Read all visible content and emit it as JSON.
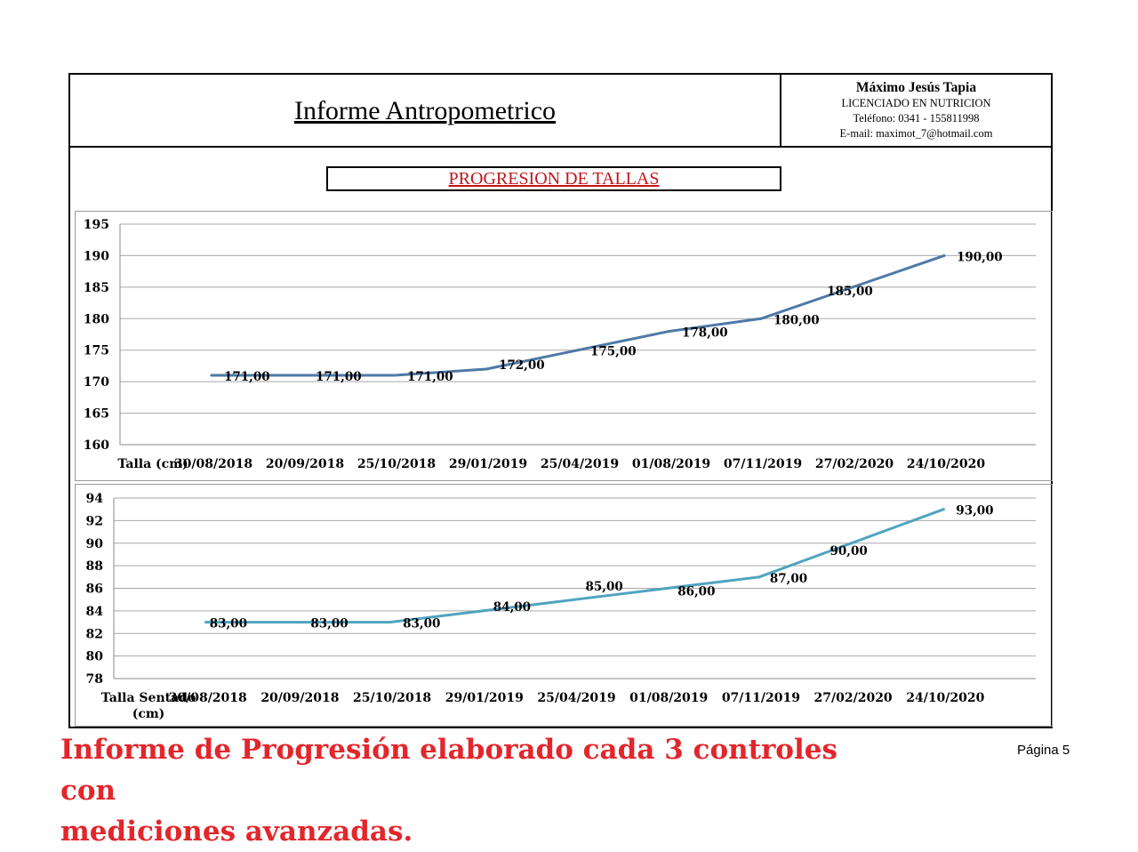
{
  "header": {
    "title": "Informe Antropometrico",
    "contact": {
      "name": "Máximo Jesús Tapia",
      "profession": "LICENCIADO EN NUTRICION",
      "phone": "Teléfono: 0341 - 155811998",
      "email": "E-mail: maximot_7@hotmail.com"
    }
  },
  "section_title": "PROGRESION DE TALLAS",
  "chart_data": [
    {
      "type": "line",
      "categories": [
        "30/08/2018",
        "20/09/2018",
        "25/10/2018",
        "29/01/2019",
        "25/04/2019",
        "01/08/2019",
        "07/11/2019",
        "27/02/2020",
        "24/10/2020"
      ],
      "category_axis_title": "Talla (cm)",
      "series": [
        {
          "values": [
            171,
            171,
            171,
            172,
            175,
            178,
            180,
            185,
            190
          ],
          "color": "#4e79a7"
        }
      ],
      "data_labels": [
        "171,00",
        "171,00",
        "171,00",
        "172,00",
        "175,00",
        "178,00",
        "180,00",
        "185,00",
        "190,00"
      ],
      "ylim": [
        160,
        195
      ],
      "yticks": [
        "160",
        "165",
        "170",
        "175",
        "180",
        "185",
        "190",
        "195"
      ],
      "grid": true,
      "legend": "none"
    },
    {
      "type": "line",
      "categories": [
        "30/08/2018",
        "20/09/2018",
        "25/10/2018",
        "29/01/2019",
        "25/04/2019",
        "01/08/2019",
        "07/11/2019",
        "27/02/2020",
        "24/10/2020"
      ],
      "category_axis_title": [
        "Talla Sentado",
        "(cm)"
      ],
      "series": [
        {
          "values": [
            83,
            83,
            83,
            84,
            85,
            86,
            87,
            90,
            93
          ],
          "color": "#4fa3bf"
        }
      ],
      "data_labels": [
        "83,00",
        "83,00",
        "83,00",
        "84,00",
        "85,00",
        "86,00",
        "87,00",
        "90,00",
        "93,00"
      ],
      "ylim": [
        78,
        94
      ],
      "yticks": [
        "78",
        "80",
        "82",
        "84",
        "86",
        "88",
        "90",
        "92",
        "94"
      ],
      "grid": true,
      "legend": "none"
    }
  ],
  "footer": {
    "note_line1": "Informe de Progresión elaborado cada 3 controles con",
    "note_line2": "mediciones avanzadas.",
    "page": "Página 5"
  }
}
